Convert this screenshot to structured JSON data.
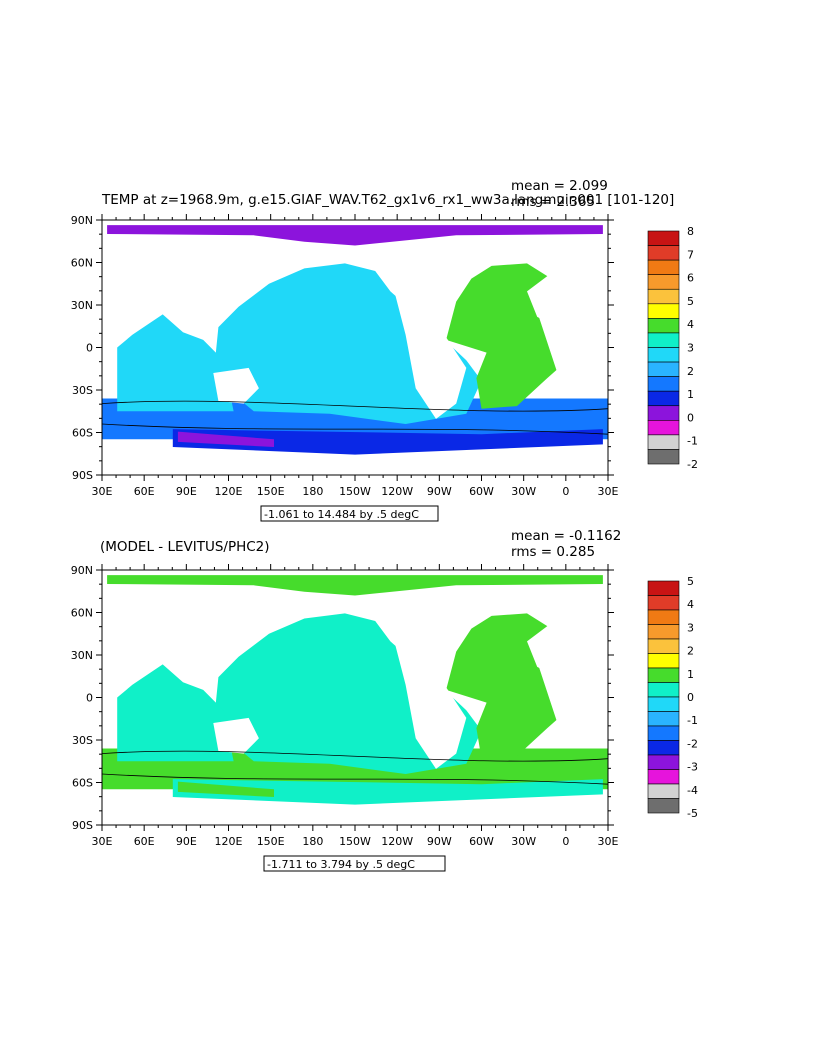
{
  "panels": [
    {
      "title": "TEMP at z=1968.9m, g.e15.GIAF_WAV.T62_gx1v6_rx1_ww3a.langmuir.001 [101-120]",
      "mean_label": "mean = 2.099",
      "rms_label": "rms = 2.365",
      "range_label": "-1.061 to 14.484 by .5 degC",
      "colorbar": {
        "labels": [
          "8",
          "7",
          "6",
          "5",
          "4",
          "3",
          "2",
          "1",
          "0",
          "-1",
          "-2"
        ],
        "colors": [
          "#c81414",
          "#e03c28",
          "#f07a14",
          "#f79a2c",
          "#fbc23c",
          "#ffff00",
          "#46dc2c",
          "#10f0c8",
          "#20d8f8",
          "#2ab4ff",
          "#1478ff",
          "#0a28e6",
          "#8c14dc",
          "#e614dc",
          "#d2d2d2",
          "#6e6e6e"
        ]
      },
      "field_colors": {
        "arctic": "#8c14dc",
        "pacific": "#20d8f8",
        "atlantic": "#46dc2c",
        "southern_band": "#1478ff",
        "antarctic": "#0a28e6",
        "deep_south": "#8c14dc"
      }
    },
    {
      "title": "(MODEL - LEVITUS/PHC2)",
      "mean_label": "mean = -0.1162",
      "rms_label": "rms = 0.285",
      "range_label": "-1.711 to 3.794 by .5 degC",
      "colorbar": {
        "labels": [
          "5",
          "4",
          "3",
          "2",
          "1",
          "0",
          "-1",
          "-2",
          "-3",
          "-4",
          "-5"
        ],
        "colors": [
          "#c81414",
          "#e03c28",
          "#f07a14",
          "#f79a2c",
          "#fbc23c",
          "#ffff00",
          "#46dc2c",
          "#10f0c8",
          "#20d8f8",
          "#2ab4ff",
          "#1478ff",
          "#0a28e6",
          "#8c14dc",
          "#e614dc",
          "#d2d2d2",
          "#6e6e6e"
        ]
      },
      "field_colors": {
        "arctic": "#46dc2c",
        "pacific": "#10f0c8",
        "atlantic": "#46dc2c",
        "southern_band": "#46dc2c",
        "antarctic": "#10f0c8",
        "deep_south": "#46dc2c"
      }
    }
  ],
  "axes": {
    "lat_labels": [
      "90N",
      "60N",
      "30N",
      "0",
      "30S",
      "60S",
      "90S"
    ],
    "lon_labels": [
      "30E",
      "60E",
      "90E",
      "120E",
      "150E",
      "180",
      "150W",
      "120W",
      "90W",
      "60W",
      "30W",
      "0",
      "30E"
    ]
  }
}
